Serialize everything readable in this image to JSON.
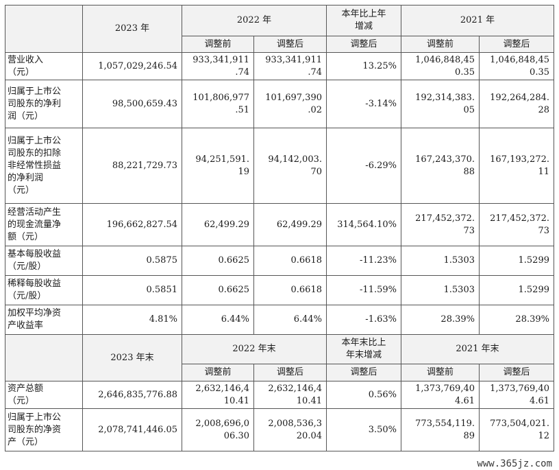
{
  "header1": {
    "y2023": "2023 年",
    "y2022": "2022 年",
    "change": "本年比上年\n增减",
    "y2021": "2021 年",
    "before": "调整前",
    "after": "调整后",
    "change_after": "调整后",
    "before2021": "调整前",
    "after2021": "调整后"
  },
  "rows1": [
    {
      "label": "营业收入\n（元）",
      "v2023": "1,057,029,246.54",
      "b2022": "933,341,911\n.74",
      "a2022": "933,341,911\n.74",
      "chg": "13.25%",
      "b2021": "1,046,848,45\n0.35",
      "a2021": "1,046,848,45\n0.35"
    },
    {
      "label": "归属于上市公\n司股东的净利\n润（元）",
      "v2023": "98,500,659.43",
      "b2022": "101,806,977\n.51",
      "a2022": "101,697,390\n.02",
      "chg": "-3.14%",
      "b2021": "192,314,383.\n05",
      "a2021": "192,264,284.\n28"
    },
    {
      "label": "归属于上市公\n司股东的扣除\n非经常性损益\n的净利润\n（元）",
      "v2023": "88,221,729.73",
      "b2022": "94,251,591.\n19",
      "a2022": "94,142,003.\n70",
      "chg": "-6.29%",
      "b2021": "167,243,370.\n88",
      "a2021": "167,193,272.\n11"
    },
    {
      "label": "经营活动产生\n的现金流量净\n额（元）",
      "v2023": "196,662,827.54",
      "b2022": "62,499.29",
      "a2022": "62,499.29",
      "chg": "314,564.10%",
      "b2021": "217,452,372.\n73",
      "a2021": "217,452,372.\n73"
    },
    {
      "label": "基本每股收益\n（元/股）",
      "v2023": "0.5875",
      "b2022": "0.6625",
      "a2022": "0.6618",
      "chg": "-11.23%",
      "b2021": "1.5303",
      "a2021": "1.5299"
    },
    {
      "label": "稀释每股收益\n（元/股）",
      "v2023": "0.5851",
      "b2022": "0.6625",
      "a2022": "0.6618",
      "chg": "-11.59%",
      "b2021": "1.5303",
      "a2021": "1.5299"
    },
    {
      "label": "加权平均净资\n产收益率",
      "v2023": "4.81%",
      "b2022": "6.44%",
      "a2022": "6.44%",
      "chg": "-1.63%",
      "b2021": "28.39%",
      "a2021": "28.39%"
    }
  ],
  "header2": {
    "y2023": "2023 年末",
    "y2022": "2022 年末",
    "change": "本年末比上\n年末增减",
    "y2021": "2021 年末",
    "before": "调整前",
    "after": "调整后",
    "change_after": "调整后",
    "before2021": "调整前",
    "after2021": "调整后"
  },
  "rows2": [
    {
      "label": "资产总额\n（元）",
      "v2023": "2,646,835,776.88",
      "b2022": "2,632,146,4\n10.41",
      "a2022": "2,632,146,4\n10.41",
      "chg": "0.56%",
      "b2021": "1,373,769,40\n4.61",
      "a2021": "1,373,769,40\n4.61"
    },
    {
      "label": "归属于上市公\n司股东的净资\n产（元）",
      "v2023": "2,078,741,446.05",
      "b2022": "2,008,696,0\n06.30",
      "a2022": "2,008,536,3\n20.04",
      "chg": "3.50%",
      "b2021": "773,554,119.\n89",
      "a2021": "773,504,021.\n12"
    }
  ],
  "watermark": "www.365jz.com"
}
